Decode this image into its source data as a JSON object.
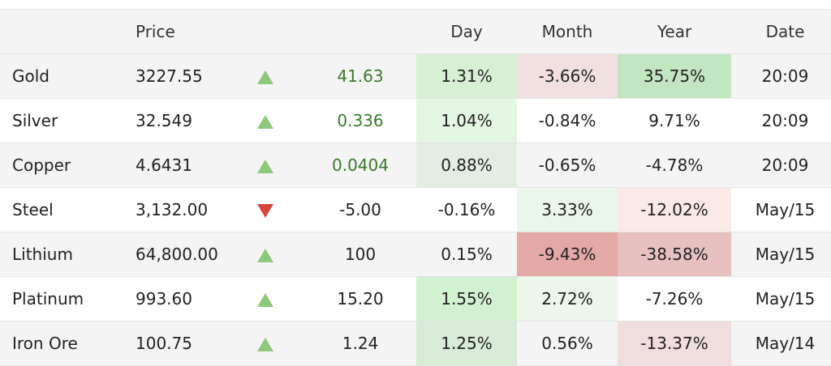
{
  "header": {
    "name": "",
    "price": "Price",
    "arrow": "",
    "change": "",
    "day": "Day",
    "month": "Month",
    "year": "Year",
    "date": "Date"
  },
  "rows": [
    {
      "name": "Gold",
      "price": "3227.55",
      "direction": "up",
      "change": "41.63",
      "change_green": true,
      "day": "1.31%",
      "day_bg": "#d7f0d4",
      "month": "-3.66%",
      "month_bg": "#f0e0e0",
      "year": "35.75%",
      "year_bg": "#c3e6c2",
      "date": "20:09"
    },
    {
      "name": "Silver",
      "price": "32.549",
      "direction": "up",
      "change": "0.336",
      "change_green": true,
      "day": "1.04%",
      "day_bg": "#e3f6e1",
      "month": "-0.84%",
      "month_bg": "",
      "year": "9.71%",
      "year_bg": "",
      "date": "20:09"
    },
    {
      "name": "Copper",
      "price": "4.6431",
      "direction": "up",
      "change": "0.0404",
      "change_green": true,
      "day": "0.88%",
      "day_bg": "#e4ede3",
      "month": "-0.65%",
      "month_bg": "",
      "year": "-4.78%",
      "year_bg": "",
      "date": "20:09"
    },
    {
      "name": "Steel",
      "price": "3,132.00",
      "direction": "down",
      "change": "-5.00",
      "change_green": false,
      "day": "-0.16%",
      "day_bg": "",
      "month": "3.33%",
      "month_bg": "#eaf6e9",
      "year": "-12.02%",
      "year_bg": "#fbe9e8",
      "date": "May/15"
    },
    {
      "name": "Lithium",
      "price": "64,800.00",
      "direction": "up",
      "change": "100",
      "change_green": false,
      "day": "0.15%",
      "day_bg": "",
      "month": "-9.43%",
      "month_bg": "#e4a8a6",
      "year": "-38.58%",
      "year_bg": "#e7c0c0",
      "date": "May/15"
    },
    {
      "name": "Platinum",
      "price": "993.60",
      "direction": "up",
      "change": "15.20",
      "change_green": false,
      "day": "1.55%",
      "day_bg": "#d2f1d0",
      "month": "2.72%",
      "month_bg": "#ecf6eb",
      "year": "-7.26%",
      "year_bg": "",
      "date": "May/15"
    },
    {
      "name": "Iron Ore",
      "price": "100.75",
      "direction": "up",
      "change": "1.24",
      "change_green": false,
      "day": "1.25%",
      "day_bg": "#d8ebd6",
      "month": "0.56%",
      "month_bg": "",
      "year": "-13.37%",
      "year_bg": "#f0dede",
      "date": "May/14"
    }
  ],
  "colors": {
    "arrow_up": "#8dc97a",
    "arrow_down": "#d9443c",
    "positive_text": "#3a7a2a",
    "stripe": "#f4f4f4"
  }
}
